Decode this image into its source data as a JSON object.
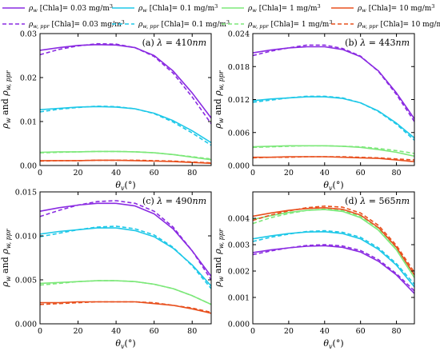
{
  "legend": [
    {
      "label_main": "ρ",
      "sub": "w",
      "label_rest": " [Chla]= 0.03 mg/m",
      "sup": "3",
      "color": "#8a2be2",
      "dash": false
    },
    {
      "label_main": "ρ",
      "sub": "w",
      "label_rest": " [Chla]= 0.1 mg/m",
      "sup": "3",
      "color": "#1ec8e8",
      "dash": false
    },
    {
      "label_main": "ρ",
      "sub": "w",
      "label_rest": " [Chla]= 1 mg/m",
      "sup": "3",
      "color": "#7de87a",
      "dash": false
    },
    {
      "label_main": "ρ",
      "sub": "w",
      "label_rest": " [Chla]= 10 mg/m",
      "sup": "3",
      "color": "#e8501e",
      "dash": false
    },
    {
      "label_main": "ρ",
      "sub": "w, ppr",
      "label_rest": " [Chla]= 0.03 mg/m",
      "sup": "3",
      "color": "#8a2be2",
      "dash": true
    },
    {
      "label_main": "ρ",
      "sub": "w, ppr",
      "label_rest": " [Chla]= 0.1 mg/m",
      "sup": "3",
      "color": "#1ec8e8",
      "dash": true
    },
    {
      "label_main": "ρ",
      "sub": "w, ppr",
      "label_rest": " [Chla]= 1 mg/m",
      "sup": "3",
      "color": "#7de87a",
      "dash": true
    },
    {
      "label_main": "ρ",
      "sub": "w, ppr",
      "label_rest": " [Chla]= 10 mg/m",
      "sup": "3",
      "color": "#e8501e",
      "dash": true
    }
  ],
  "colors": {
    "c003": "#8a2be2",
    "c01": "#1ec8e8",
    "c1": "#7de87a",
    "c10": "#e8501e"
  },
  "chart_data": [
    {
      "type": "line",
      "title": "(a) λ = 410nm",
      "xlabel": "θv(°)",
      "ylabel": "ρw and ρw, ppr",
      "xlim": [
        0,
        90
      ],
      "ylim": [
        0,
        0.03
      ],
      "xticks": [
        "0",
        "20",
        "40",
        "60",
        "80"
      ],
      "yticks": [
        "0.00",
        "0.01",
        "0.02",
        "0.03"
      ],
      "x": [
        0,
        10,
        20,
        30,
        40,
        50,
        60,
        70,
        80,
        90
      ],
      "series": [
        {
          "chla": "0.03",
          "kind": "rho_w",
          "values": [
            0.0262,
            0.0268,
            0.0273,
            0.0275,
            0.0274,
            0.0268,
            0.025,
            0.0215,
            0.0165,
            0.0108
          ]
        },
        {
          "chla": "0.03",
          "kind": "rho_w_ppr",
          "values": [
            0.0252,
            0.0264,
            0.0272,
            0.0277,
            0.0276,
            0.0268,
            0.0248,
            0.021,
            0.0156,
            0.0095
          ]
        },
        {
          "chla": "0.1",
          "kind": "rho_w",
          "values": [
            0.0127,
            0.013,
            0.0133,
            0.0134,
            0.0133,
            0.0129,
            0.0119,
            0.0102,
            0.0079,
            0.0052
          ]
        },
        {
          "chla": "0.1",
          "kind": "rho_w_ppr",
          "values": [
            0.0122,
            0.0128,
            0.0132,
            0.0135,
            0.0134,
            0.0129,
            0.0118,
            0.0099,
            0.0074,
            0.0046
          ]
        },
        {
          "chla": "1",
          "kind": "rho_w",
          "values": [
            0.003,
            0.0031,
            0.0031,
            0.0032,
            0.0032,
            0.0031,
            0.0029,
            0.0025,
            0.0019,
            0.0013
          ]
        },
        {
          "chla": "1",
          "kind": "rho_w_ppr",
          "values": [
            0.0029,
            0.003,
            0.0031,
            0.0032,
            0.0032,
            0.0031,
            0.0029,
            0.0025,
            0.002,
            0.0015
          ]
        },
        {
          "chla": "10",
          "kind": "rho_w",
          "values": [
            0.0011,
            0.0011,
            0.0011,
            0.0012,
            0.0012,
            0.0011,
            0.001,
            0.0009,
            0.0007,
            0.0005
          ]
        },
        {
          "chla": "10",
          "kind": "rho_w_ppr",
          "values": [
            0.001,
            0.0011,
            0.0011,
            0.0012,
            0.0012,
            0.0012,
            0.0011,
            0.001,
            0.0008,
            0.0006
          ]
        }
      ]
    },
    {
      "type": "line",
      "title": "(b) λ = 443nm",
      "xlabel": "θv(°)",
      "ylabel": "ρw and ρw, ppr",
      "xlim": [
        0,
        90
      ],
      "ylim": [
        0,
        0.024
      ],
      "xticks": [
        "0",
        "20",
        "40",
        "60",
        "80"
      ],
      "yticks": [
        "0.000",
        "0.006",
        "0.012",
        "0.018",
        "0.024"
      ],
      "x": [
        0,
        10,
        20,
        30,
        40,
        50,
        60,
        70,
        80,
        90
      ],
      "series": [
        {
          "chla": "0.03",
          "kind": "rho_w",
          "values": [
            0.0205,
            0.021,
            0.0214,
            0.0216,
            0.0216,
            0.0211,
            0.0198,
            0.0172,
            0.0132,
            0.0085
          ]
        },
        {
          "chla": "0.03",
          "kind": "rho_w_ppr",
          "values": [
            0.02,
            0.0208,
            0.0214,
            0.0219,
            0.0219,
            0.0213,
            0.0199,
            0.0171,
            0.0129,
            0.008
          ]
        },
        {
          "chla": "0.1",
          "kind": "rho_w",
          "values": [
            0.0118,
            0.0121,
            0.0123,
            0.0125,
            0.0125,
            0.0122,
            0.0114,
            0.0099,
            0.0077,
            0.005
          ]
        },
        {
          "chla": "0.1",
          "kind": "rho_w_ppr",
          "values": [
            0.0115,
            0.0119,
            0.0123,
            0.0126,
            0.0126,
            0.0123,
            0.0114,
            0.0098,
            0.0075,
            0.0046
          ]
        },
        {
          "chla": "1",
          "kind": "rho_w",
          "values": [
            0.0034,
            0.0035,
            0.0036,
            0.0036,
            0.0036,
            0.0035,
            0.0033,
            0.0029,
            0.0024,
            0.0017
          ]
        },
        {
          "chla": "1",
          "kind": "rho_w_ppr",
          "values": [
            0.0033,
            0.0034,
            0.0035,
            0.0036,
            0.0036,
            0.0035,
            0.0034,
            0.0031,
            0.0027,
            0.0022
          ]
        },
        {
          "chla": "10",
          "kind": "rho_w",
          "values": [
            0.0015,
            0.0015,
            0.0016,
            0.0016,
            0.0016,
            0.0015,
            0.0014,
            0.0013,
            0.001,
            0.0007
          ]
        },
        {
          "chla": "10",
          "kind": "rho_w_ppr",
          "values": [
            0.0014,
            0.0015,
            0.0015,
            0.0016,
            0.0016,
            0.0016,
            0.0015,
            0.0014,
            0.0012,
            0.001
          ]
        }
      ]
    },
    {
      "type": "line",
      "title": "(c) λ = 490nm",
      "xlabel": "θv(°)",
      "ylabel": "ρw and ρw, ppr",
      "xlim": [
        0,
        90
      ],
      "ylim": [
        0,
        0.015
      ],
      "xticks": [
        "0",
        "20",
        "40",
        "60",
        "80"
      ],
      "yticks": [
        "0.000",
        "0.005",
        "0.010",
        "0.015"
      ],
      "x": [
        0,
        10,
        20,
        30,
        40,
        50,
        60,
        70,
        80,
        90
      ],
      "series": [
        {
          "chla": "0.03",
          "kind": "rho_w",
          "values": [
            0.0128,
            0.0132,
            0.0135,
            0.0137,
            0.0137,
            0.0134,
            0.0125,
            0.0108,
            0.0083,
            0.0054
          ]
        },
        {
          "chla": "0.03",
          "kind": "rho_w_ppr",
          "values": [
            0.0122,
            0.0129,
            0.0135,
            0.0139,
            0.014,
            0.0137,
            0.0128,
            0.011,
            0.0083,
            0.005
          ]
        },
        {
          "chla": "0.1",
          "kind": "rho_w",
          "values": [
            0.0102,
            0.0105,
            0.0107,
            0.0109,
            0.0109,
            0.0106,
            0.0099,
            0.0086,
            0.0067,
            0.0043
          ]
        },
        {
          "chla": "0.1",
          "kind": "rho_w_ppr",
          "values": [
            0.0099,
            0.0103,
            0.0107,
            0.011,
            0.0111,
            0.0108,
            0.0101,
            0.0087,
            0.0066,
            0.004
          ]
        },
        {
          "chla": "1",
          "kind": "rho_w",
          "values": [
            0.0046,
            0.0047,
            0.0048,
            0.0049,
            0.0049,
            0.0048,
            0.0045,
            0.004,
            0.0032,
            0.0022
          ]
        },
        {
          "chla": "1",
          "kind": "rho_w_ppr",
          "values": [
            0.0044,
            0.0046,
            0.0048,
            0.0049,
            0.0049,
            0.0048,
            0.0045,
            0.004,
            0.0032,
            0.0022
          ]
        },
        {
          "chla": "10",
          "kind": "rho_w",
          "values": [
            0.0024,
            0.0024,
            0.0025,
            0.0025,
            0.0025,
            0.0025,
            0.0023,
            0.0021,
            0.0017,
            0.0012
          ]
        },
        {
          "chla": "10",
          "kind": "rho_w_ppr",
          "values": [
            0.0022,
            0.0023,
            0.0024,
            0.0025,
            0.0025,
            0.0025,
            0.0024,
            0.0021,
            0.0018,
            0.0013
          ]
        }
      ]
    },
    {
      "type": "line",
      "title": "(d) λ = 565nm",
      "xlabel": "θv(°)",
      "ylabel": "ρw and ρw, ppr",
      "xlim": [
        0,
        90
      ],
      "ylim": [
        0,
        0.005
      ],
      "xticks": [
        "0",
        "20",
        "40",
        "60",
        "80"
      ],
      "yticks": [
        "0.000",
        "0.001",
        "0.002",
        "0.003",
        "0.004"
      ],
      "x": [
        0,
        10,
        20,
        30,
        40,
        50,
        60,
        70,
        80,
        90
      ],
      "series": [
        {
          "chla": "0.03",
          "kind": "rho_w",
          "values": [
            0.0027,
            0.0028,
            0.00288,
            0.00294,
            0.00296,
            0.0029,
            0.00272,
            0.00237,
            0.00185,
            0.00115
          ]
        },
        {
          "chla": "0.03",
          "kind": "rho_w_ppr",
          "values": [
            0.00262,
            0.00276,
            0.00288,
            0.00297,
            0.003,
            0.00295,
            0.00278,
            0.00243,
            0.0019,
            0.00125
          ]
        },
        {
          "chla": "0.1",
          "kind": "rho_w",
          "values": [
            0.00322,
            0.00333,
            0.00342,
            0.00348,
            0.00349,
            0.00342,
            0.00322,
            0.00282,
            0.00222,
            0.0014
          ]
        },
        {
          "chla": "0.1",
          "kind": "rho_w_ppr",
          "values": [
            0.00312,
            0.00328,
            0.0034,
            0.0035,
            0.00353,
            0.00347,
            0.00328,
            0.00288,
            0.00228,
            0.0015
          ]
        },
        {
          "chla": "1",
          "kind": "rho_w",
          "values": [
            0.00395,
            0.0041,
            0.00422,
            0.0043,
            0.00433,
            0.00426,
            0.00402,
            0.00355,
            0.0028,
            0.00175
          ]
        },
        {
          "chla": "1",
          "kind": "rho_w_ppr",
          "values": [
            0.0038,
            0.00402,
            0.00418,
            0.0043,
            0.00435,
            0.0043,
            0.00408,
            0.00362,
            0.00288,
            0.00185
          ]
        },
        {
          "chla": "10",
          "kind": "rho_w",
          "values": [
            0.00408,
            0.0042,
            0.0043,
            0.00437,
            0.0044,
            0.00434,
            0.00412,
            0.00365,
            0.0029,
            0.00185
          ]
        },
        {
          "chla": "10",
          "kind": "rho_w_ppr",
          "values": [
            0.00392,
            0.00412,
            0.00428,
            0.0044,
            0.00446,
            0.00442,
            0.0042,
            0.00373,
            0.00297,
            0.00195
          ]
        }
      ]
    }
  ]
}
